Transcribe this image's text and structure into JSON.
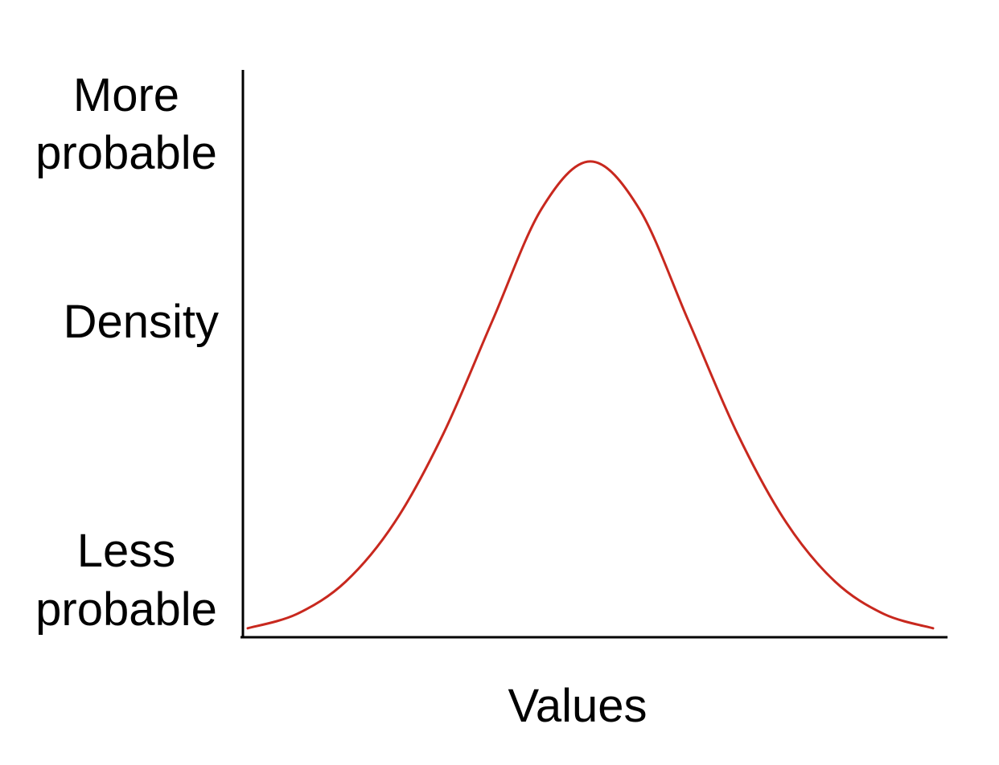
{
  "chart_data": {
    "type": "line",
    "title": "",
    "xlabel": "Values",
    "ylabel": "Density",
    "y_axis_labels": {
      "top": [
        "More",
        "probable"
      ],
      "middle": "Density",
      "bottom": [
        "Less",
        "probable"
      ]
    },
    "series": [
      {
        "color": "#c8281e",
        "x": [
          -2.1,
          -1.8,
          -1.5,
          -1.2,
          -0.9,
          -0.6,
          -0.3,
          0.0,
          0.3,
          0.6,
          0.9,
          1.2,
          1.5,
          1.8,
          2.1
        ],
        "y": [
          0.013,
          0.041,
          0.105,
          0.222,
          0.398,
          0.621,
          0.841,
          0.935,
          0.841,
          0.621,
          0.398,
          0.222,
          0.105,
          0.041,
          0.013
        ]
      }
    ],
    "xlim": [
      -2.1,
      2.1
    ],
    "ylim": [
      0,
      1
    ],
    "grid": false,
    "ticks": false,
    "legend": "none"
  }
}
